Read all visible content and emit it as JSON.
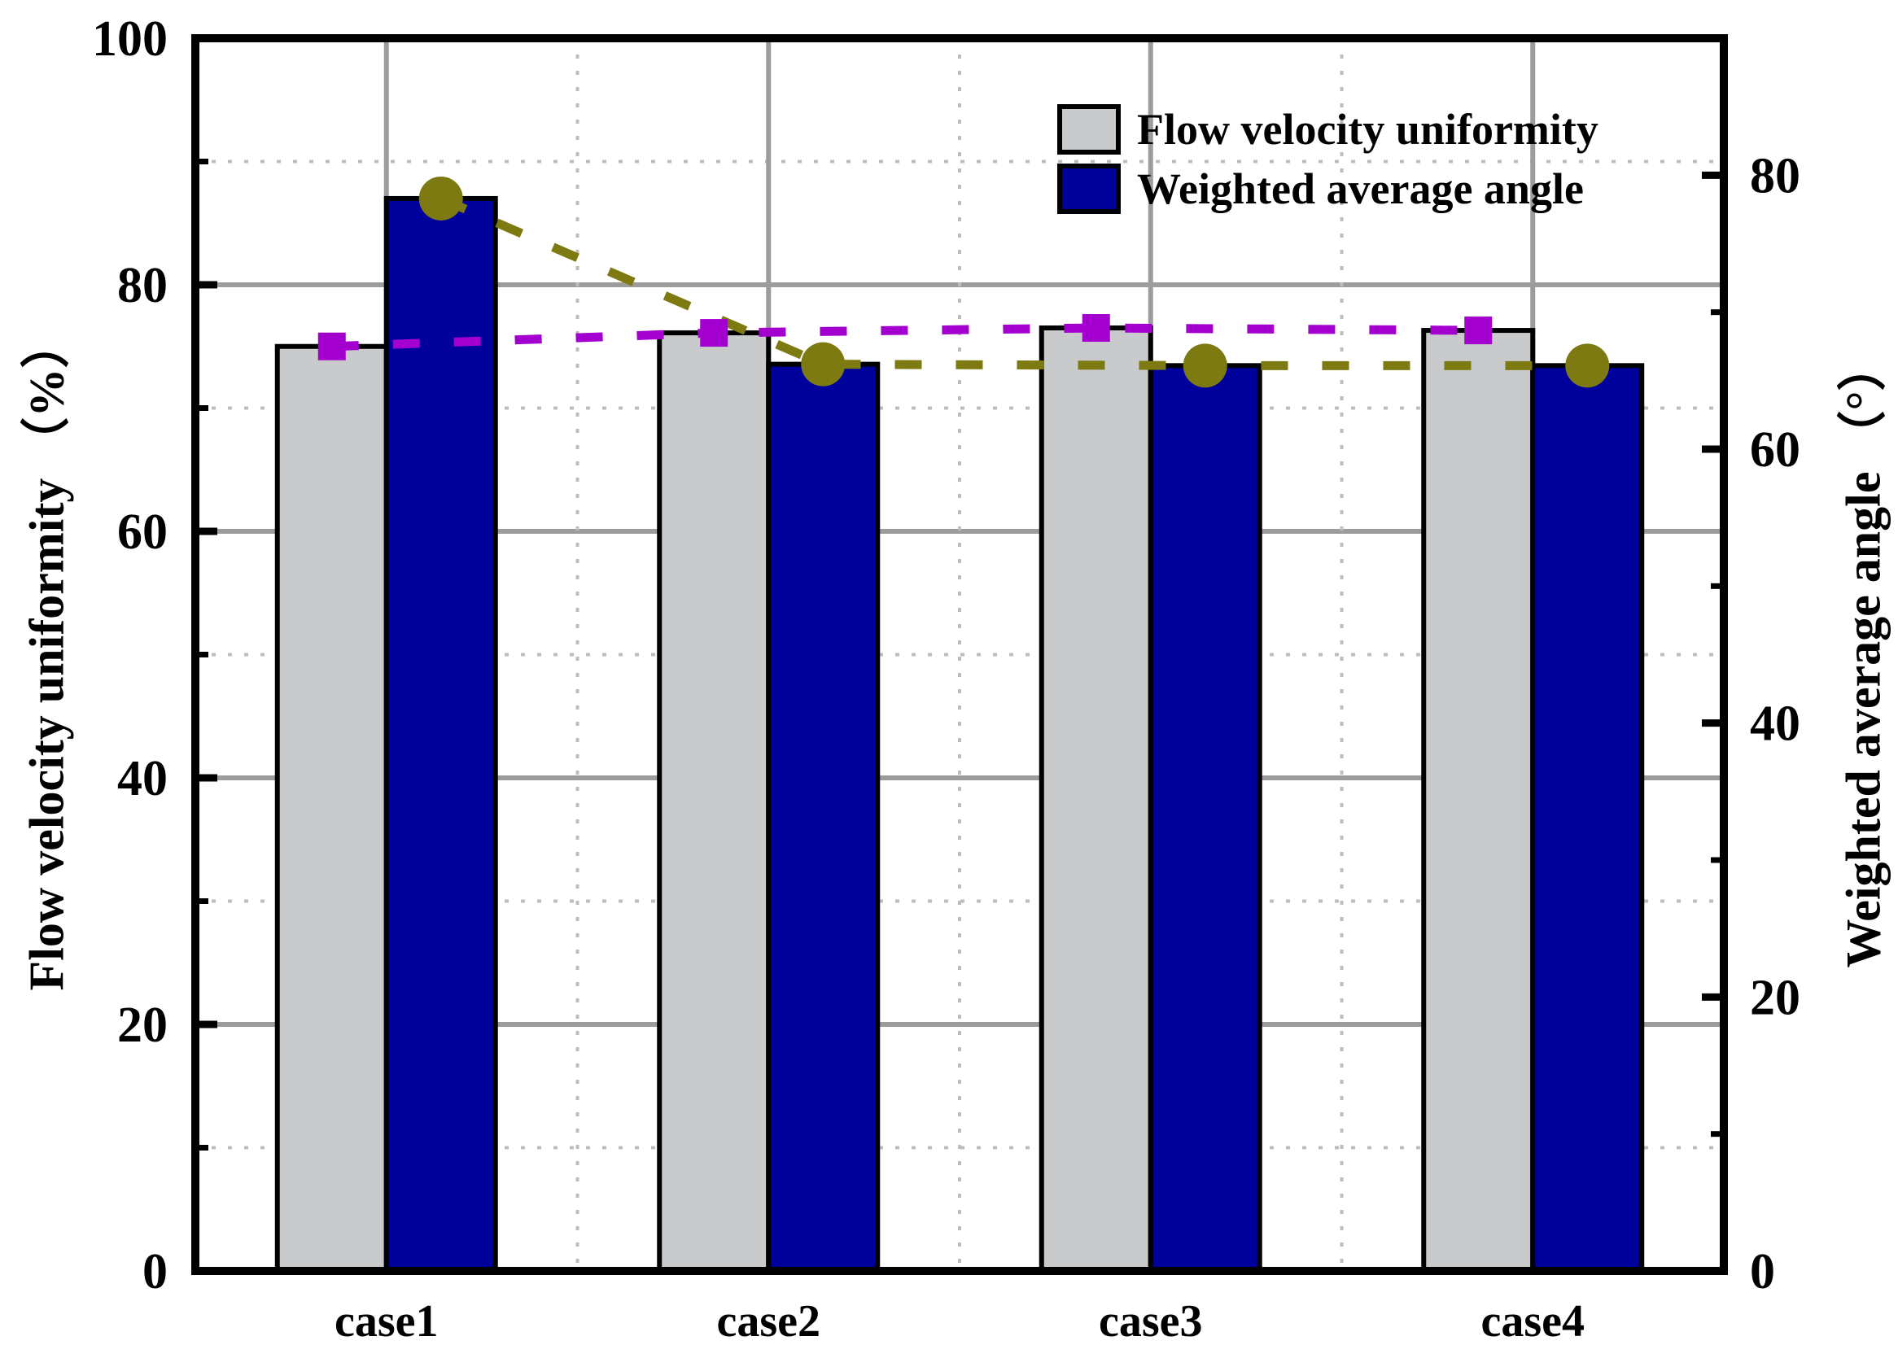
{
  "chart_data": {
    "type": "bar",
    "subtype": "grouped-bars-with-dashed-marker-lines",
    "categories": [
      "case1",
      "case2",
      "case3",
      "case4"
    ],
    "series": [
      {
        "name": "Flow velocity uniformity",
        "axis": "left",
        "bar_color": "#c9cacc",
        "bar_border_color": "#000000",
        "line_color": "#a300d0",
        "marker": "square",
        "values": [
          75.0,
          76.1,
          76.5,
          76.3
        ]
      },
      {
        "name": "Weighted average angle",
        "axis": "right",
        "bar_color": "#00009c",
        "bar_border_color": "#000000",
        "line_color": "#7e7a12",
        "marker": "circle",
        "values": [
          78.3,
          66.2,
          66.1,
          66.1
        ]
      }
    ],
    "left_axis": {
      "label": "Flow velocity uniformity （%）",
      "min": 0,
      "max": 100,
      "major_step": 20,
      "minor_step": 10,
      "major_tick_labels": [
        "0",
        "20",
        "40",
        "60",
        "80",
        "100"
      ]
    },
    "right_axis": {
      "label": "Weighted average angle （°）",
      "min": 0,
      "max": 90,
      "major_step": 20,
      "minor_step": 10,
      "major_tick_labels": [
        "0",
        "20",
        "40",
        "60",
        "80"
      ]
    },
    "grid": {
      "major_color": "#9c9c9c",
      "minor_color": "#bdbdbd",
      "major_style": "solid",
      "minor_style": "dotted"
    },
    "legend": {
      "position": "top-right-inside",
      "items": [
        {
          "label": "Flow velocity uniformity",
          "swatch_color": "#c9cacc"
        },
        {
          "label": "Weighted average angle",
          "swatch_color": "#00009c"
        }
      ]
    },
    "title": ""
  }
}
